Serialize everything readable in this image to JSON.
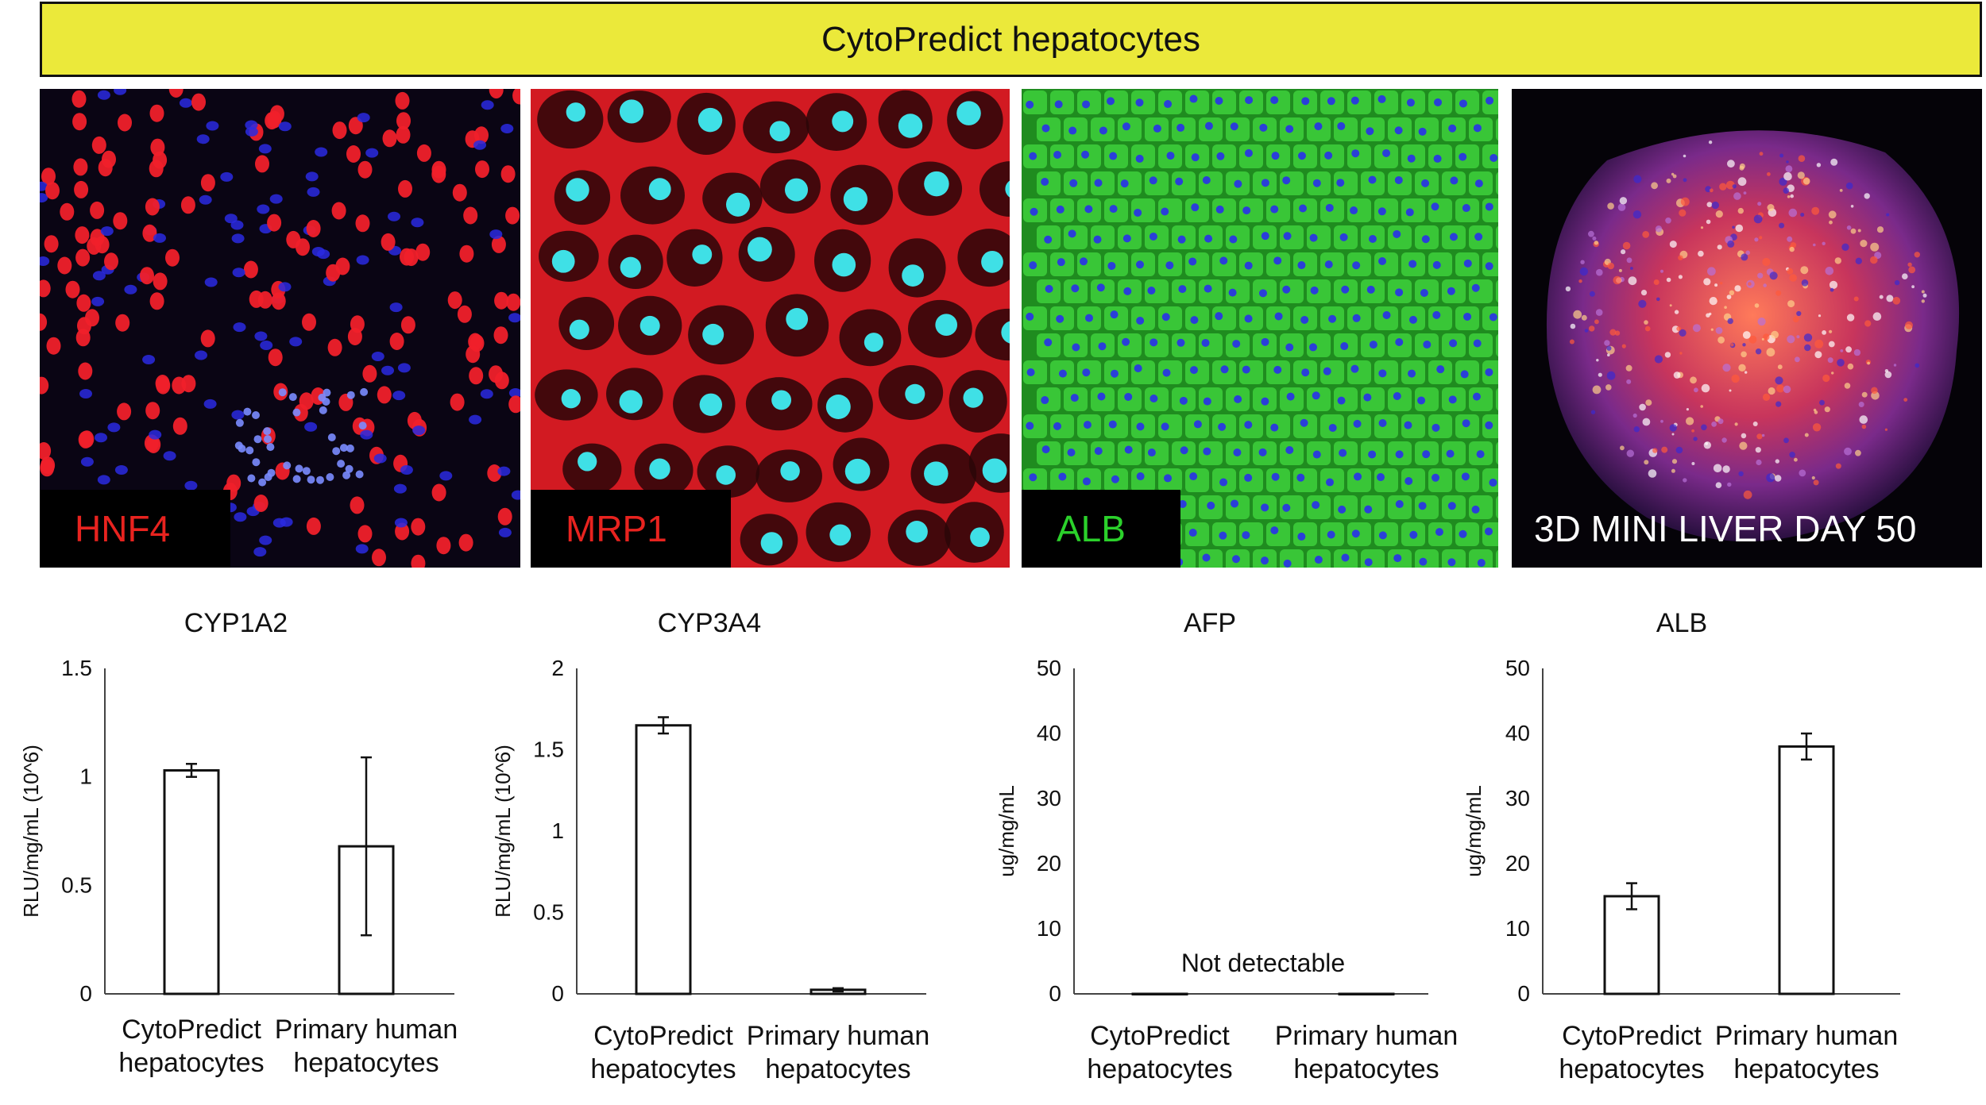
{
  "banner": {
    "title": "CytoPredict hepatocytes"
  },
  "panels": [
    {
      "label": "HNF4",
      "label_color": "#e8231f"
    },
    {
      "label": "MRP1",
      "label_color": "#e8231f"
    },
    {
      "label": "ALB",
      "label_color": "#2bd12b"
    },
    {
      "label": "3D MINI  LIVER DAY 50",
      "label_color": "#ffffff"
    }
  ],
  "chart_data": [
    {
      "type": "bar",
      "title": "CYP1A2",
      "ylabel": "RLU/mg/mL (10^6)",
      "ylim": [
        0,
        1.5
      ],
      "yticks": [
        "0",
        "0.5",
        "1",
        "1.5"
      ],
      "categories": [
        [
          "CytoPredict",
          "hepatocytes"
        ],
        [
          "Primary human",
          "hepatocytes"
        ]
      ],
      "values": [
        1.03,
        0.68
      ],
      "errors": [
        0.03,
        0.41
      ],
      "annotation": ""
    },
    {
      "type": "bar",
      "title": "CYP3A4",
      "ylabel": "RLU/mg/mL (10^6)",
      "ylim": [
        0,
        2
      ],
      "yticks": [
        "0",
        "0.5",
        "1",
        "1.5",
        "2"
      ],
      "categories": [
        [
          "CytoPredict",
          "hepatocytes"
        ],
        [
          "Primary human",
          "hepatocytes"
        ]
      ],
      "values": [
        1.65,
        0.025
      ],
      "errors": [
        0.05,
        0.01
      ],
      "annotation": ""
    },
    {
      "type": "bar",
      "title": "AFP",
      "ylabel": "ug/mg/mL",
      "ylim": [
        0,
        50
      ],
      "yticks": [
        "0",
        "10",
        "20",
        "30",
        "40",
        "50"
      ],
      "categories": [
        [
          "CytoPredict",
          "hepatocytes"
        ],
        [
          "Primary human",
          "hepatocytes"
        ]
      ],
      "values": [
        0,
        0
      ],
      "errors": [
        0,
        0
      ],
      "annotation": "Not detectable"
    },
    {
      "type": "bar",
      "title": "ALB",
      "ylabel": "ug/mg/mL",
      "ylim": [
        0,
        50
      ],
      "yticks": [
        "0",
        "10",
        "20",
        "30",
        "40",
        "50"
      ],
      "categories": [
        [
          "CytoPredict",
          "hepatocytes"
        ],
        [
          "Primary human",
          "hepatocytes"
        ]
      ],
      "values": [
        15,
        38
      ],
      "errors": [
        2,
        2
      ],
      "annotation": ""
    }
  ]
}
